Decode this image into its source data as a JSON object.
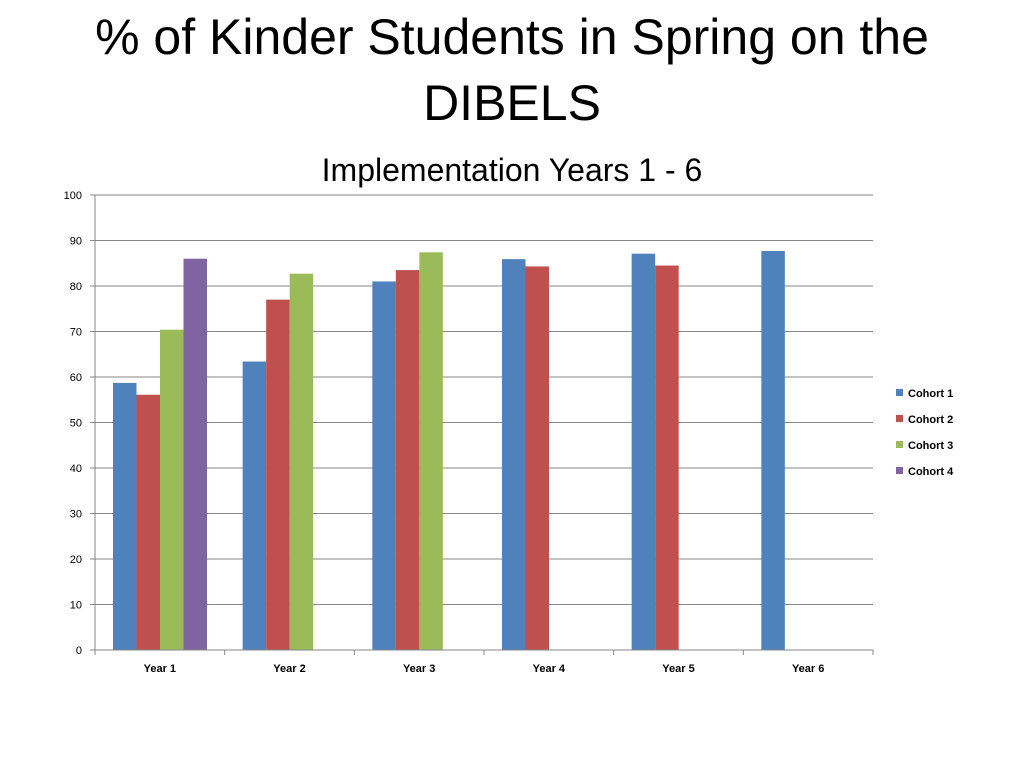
{
  "slide": {
    "title": "% of Kinder Students in Spring on the DIBELS",
    "subtitle": "Implementation Years 1 - 6"
  },
  "chart_data": {
    "type": "bar",
    "title": "% of Kinder Students in Spring on the DIBELS",
    "subtitle": "Implementation Years 1 - 6",
    "xlabel": "",
    "ylabel": "",
    "categories": [
      "Year 1",
      "Year 2",
      "Year 3",
      "Year 4",
      "Year 5",
      "Year 6"
    ],
    "ylim": [
      0,
      100
    ],
    "yticks": [
      0,
      10,
      20,
      30,
      40,
      50,
      60,
      70,
      80,
      90,
      100
    ],
    "grid": true,
    "legend_position": "right",
    "series": [
      {
        "name": "Cohort 1",
        "color": "#4F81BD",
        "values": [
          58.7,
          63.4,
          81.0,
          85.9,
          87.1,
          87.7
        ]
      },
      {
        "name": "Cohort 2",
        "color": "#C0504D",
        "values": [
          56.1,
          77.0,
          83.5,
          84.3,
          84.5,
          null
        ]
      },
      {
        "name": "Cohort 3",
        "color": "#9BBB59",
        "values": [
          70.4,
          82.7,
          87.4,
          null,
          null,
          null
        ]
      },
      {
        "name": "Cohort 4",
        "color": "#8064A2",
        "values": [
          86.0,
          null,
          null,
          null,
          null,
          null
        ]
      }
    ]
  }
}
